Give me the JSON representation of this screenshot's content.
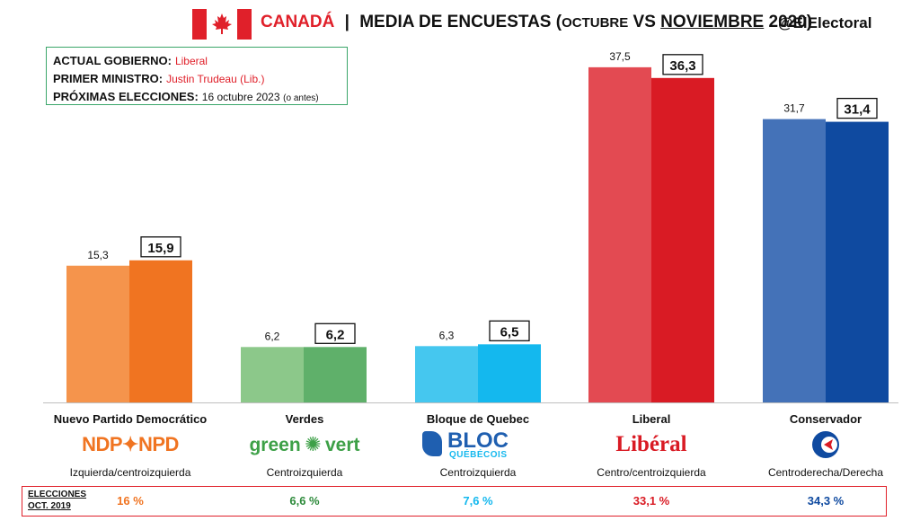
{
  "header": {
    "country": "CANADÁ",
    "separator": "|",
    "title_main": "MEDIA DE ENCUESTAS (",
    "title_small_1": "OCTUBRE",
    "title_vs": " VS ",
    "title_und": "NOVIEMBRE",
    "title_end": " 2020)",
    "handle": "@ElElectoral"
  },
  "info": {
    "gov_label": "ACTUAL GOBIERNO:",
    "gov_value": "Liberal",
    "pm_label": "PRIMER MINISTRO:",
    "pm_value": "Justin Trudeau (Lib.)",
    "next_label": "PRÓXIMAS ELECCIONES:",
    "next_value": "16 octubre 2023",
    "next_note": "(o antes)"
  },
  "chart_data": {
    "type": "bar",
    "categories": [
      "Nuevo Partido Democrático",
      "Verdes",
      "Bloque de Quebec",
      "Liberal",
      "Conservador"
    ],
    "series": [
      {
        "values": [
          15.3,
          6.2,
          6.3,
          37.5,
          31.7
        ],
        "labels": [
          "15,3",
          "6,2",
          "6,3",
          "37,5",
          "31,7"
        ]
      },
      {
        "values": [
          15.9,
          6.2,
          6.5,
          36.3,
          31.4
        ],
        "labels": [
          "15,9",
          "6,2",
          "6,5",
          "36,3",
          "31,4"
        ]
      }
    ],
    "ideology": [
      "Izquierda/centroizquierda",
      "Centroizquierda",
      "Centroizquierda",
      "Centro/centroizquierda",
      "Centroderecha/Derecha"
    ],
    "colors_oct": [
      "#f5944c",
      "#8cc88a",
      "#45c7ef",
      "#e34a52",
      "#4472b8"
    ],
    "colors_nov": [
      "#f07421",
      "#5fb06a",
      "#14b8ee",
      "#d91b24",
      "#0f4aa0"
    ],
    "ylim": [
      0,
      40
    ]
  },
  "logos": [
    "NDP✦NPD",
    "green",
    "vert",
    "BLOC",
    "QUÉBÉCOIS",
    "Libéral"
  ],
  "elections": {
    "label_1": "ELECCIONES",
    "label_2": "OCT. 2019",
    "values": [
      "16 %",
      "6,6 %",
      "7,6 %",
      "33,1 %",
      "34,3 %"
    ],
    "colors": [
      "#f07421",
      "#2e8b3c",
      "#14b8ee",
      "#d91b24",
      "#0f4aa0"
    ]
  }
}
